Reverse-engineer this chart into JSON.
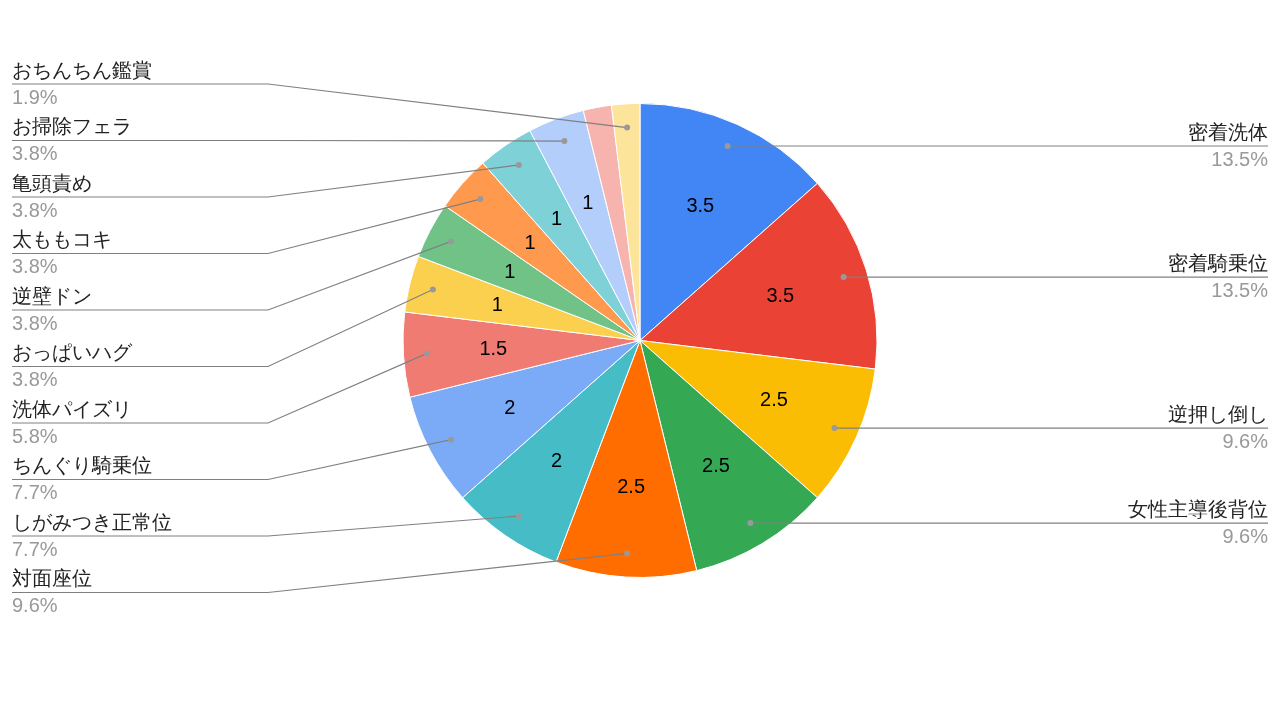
{
  "chart_data": {
    "type": "pie",
    "categories": [
      "密着洗体",
      "密着騎乗位",
      "逆押し倒し",
      "女性主導後背位",
      "対面座位",
      "しがみつき正常位",
      "ちんぐり騎乗位",
      "洗体パイズリ",
      "おっぱいハグ",
      "逆壁ドン",
      "太ももコキ",
      "亀頭責め",
      "お掃除フェラ",
      null,
      "おちんちん鑑賞"
    ],
    "values": [
      3.5,
      3.5,
      2.5,
      2.5,
      2.5,
      2,
      2,
      1.5,
      1,
      1,
      1,
      1,
      1,
      0.5,
      0.5
    ],
    "value_labels": [
      "3.5",
      "3.5",
      "2.5",
      "2.5",
      "2.5",
      "2",
      "2",
      "1.5",
      "1",
      "1",
      "1",
      "1",
      "1",
      null,
      null
    ],
    "colors": [
      "#4285f4",
      "#ea4335",
      "#fbbc04",
      "#34a853",
      "#ff6d01",
      "#46bdc6",
      "#7baaf7",
      "#f07b72",
      "#fcd04f",
      "#71c287",
      "#ff994d",
      "#7ed1d7",
      "#b3cefb",
      "#f7b4ae",
      "#fde49b"
    ],
    "annotations": [
      {
        "text": "13.5%",
        "x": "密着洗体"
      },
      {
        "text": "13.5%",
        "x": "密着騎乗位"
      },
      {
        "text": "9.6%",
        "x": "逆押し倒し"
      },
      {
        "text": "9.6%",
        "x": "女性主導後背位"
      },
      {
        "text": "9.6%",
        "x": "対面座位"
      },
      {
        "text": "7.7%",
        "x": "しがみつき正常位"
      },
      {
        "text": "7.7%",
        "x": "ちんぐり騎乗位"
      },
      {
        "text": "5.8%",
        "x": "洗体パイズリ"
      },
      {
        "text": "3.8%",
        "x": "おっぱいハグ"
      },
      {
        "text": "3.8%",
        "x": "逆壁ドン"
      },
      {
        "text": "3.8%",
        "x": "太ももコキ"
      },
      {
        "text": "3.8%",
        "x": "亀頭責め"
      },
      {
        "text": "3.8%",
        "x": "お掃除フェラ"
      },
      {
        "text": "1.9%",
        "x": "おちんちん鑑賞"
      }
    ],
    "legend": false
  }
}
